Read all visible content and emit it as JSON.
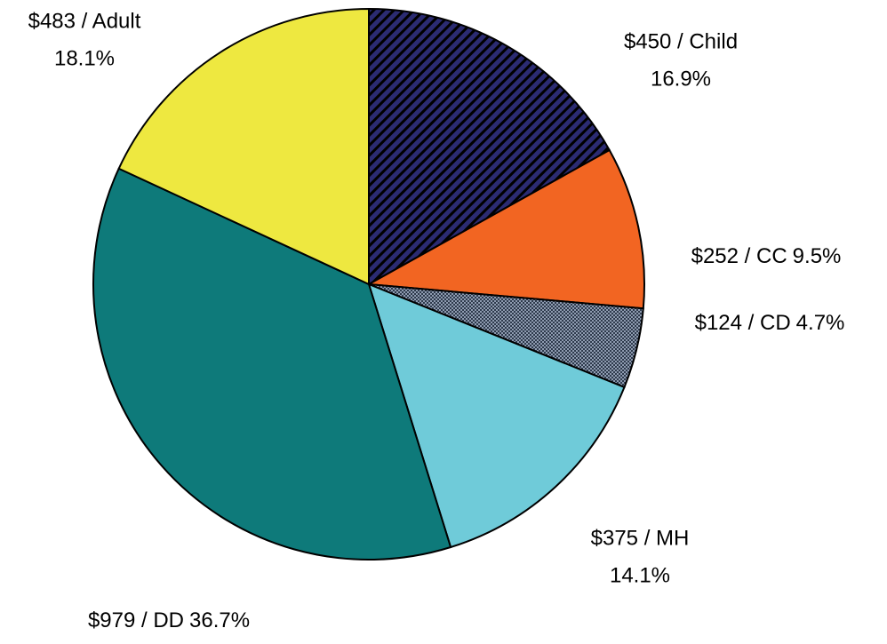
{
  "chart_data": {
    "type": "pie",
    "categories": [
      "$450 /  Child",
      "$252 / CC",
      "$124 / CD",
      "$375 / MH",
      "$979 / DD",
      "$483 / Adult"
    ],
    "values": [
      16.9,
      9.5,
      4.7,
      14.1,
      36.7,
      18.1
    ],
    "value_labels": [
      "16.9%",
      "9.5%",
      "4.7%",
      "14.1%",
      "36.7%",
      "18.1%"
    ],
    "colors": [
      "#2b2b72",
      "#f26522",
      "#5f6c82",
      "#6fcbd9",
      "#0e7a7a",
      "#eee840"
    ]
  }
}
